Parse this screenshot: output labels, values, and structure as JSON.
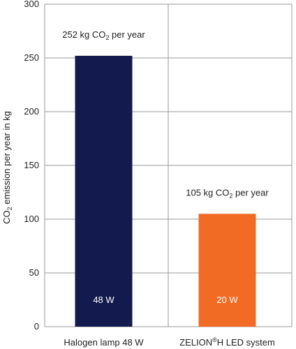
{
  "chart_data": {
    "type": "bar",
    "ylabel_parts": {
      "pre": "CO",
      "sub": "2",
      "post": " emission per year in kg"
    },
    "ylim": [
      0,
      300
    ],
    "yticks": [
      "0",
      "50",
      "100",
      "150",
      "200",
      "250",
      "300"
    ],
    "ytick_values": [
      0,
      50,
      100,
      150,
      200,
      250,
      300
    ],
    "grid": true,
    "bars": [
      {
        "category_parts": {
          "pre": "Halogen lamp 48 W",
          "sup": "",
          "post": ""
        },
        "value": 252,
        "color": "#131a4d",
        "inner_label": "48 W",
        "annotation_parts": {
          "pre": "252 kg CO",
          "sub": "2",
          "post": " per year"
        }
      },
      {
        "category_parts": {
          "pre": "ZELION",
          "sup": "®",
          "post": "H LED system"
        },
        "value": 105,
        "color": "#f26b25",
        "inner_label": "20 W",
        "annotation_parts": {
          "pre": "105 kg CO",
          "sub": "2",
          "post": " per year"
        }
      }
    ]
  }
}
